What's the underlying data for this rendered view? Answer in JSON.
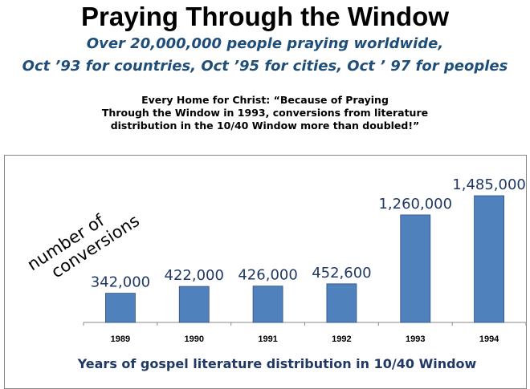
{
  "header": {
    "title": "Praying Through the Window",
    "subtitle_line1": "Over 20,000,000 people praying worldwide,",
    "subtitle_line2": "Oct ’93 for countries, Oct ’95 for cities, Oct ’ 97 for peoples"
  },
  "quote": {
    "line1": "Every Home for Christ: “Because of Praying",
    "line2": "Through the Window in 1993, conversions from literature",
    "line3": "distribution in the 10/40 Window more than doubled!”"
  },
  "chart_data": {
    "type": "bar",
    "categories": [
      "1989",
      "1990",
      "1991",
      "1992",
      "1993",
      "1994"
    ],
    "values": [
      342000,
      422000,
      426000,
      452600,
      1260000,
      1485000
    ],
    "data_labels": [
      "342,000",
      "422,000",
      "426,000",
      "452,600",
      "1,260,000",
      "1,485,000"
    ],
    "title": "",
    "xlabel": "Years of gospel literature distribution in 10/40 Window",
    "ylabel_line1": "number of",
    "ylabel_line2": "conversions",
    "grid": false,
    "bar_color": "#4f81bd",
    "label_color": "#1f3864"
  }
}
